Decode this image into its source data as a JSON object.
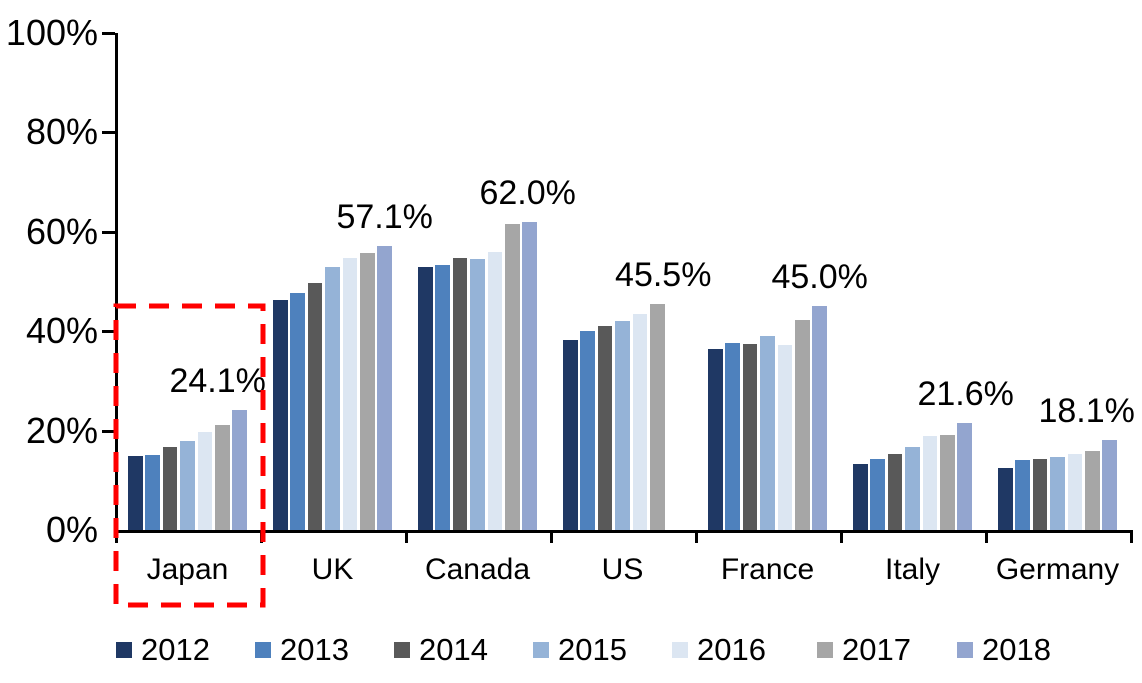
{
  "chart_data": {
    "type": "bar",
    "title": "",
    "xlabel": "",
    "ylabel": "",
    "categories": [
      "Japan",
      "UK",
      "Canada",
      "US",
      "France",
      "Italy",
      "Germany"
    ],
    "series": [
      {
        "name": "2012",
        "color": "#1F3864",
        "values": [
          14.9,
          46.2,
          52.9,
          38.2,
          36.4,
          13.2,
          12.5
        ]
      },
      {
        "name": "2013",
        "color": "#4E81BD",
        "values": [
          15.1,
          47.6,
          53.3,
          40.0,
          37.6,
          14.2,
          14.0
        ]
      },
      {
        "name": "2014",
        "color": "#595959",
        "values": [
          16.7,
          49.7,
          54.7,
          41.0,
          37.4,
          15.3,
          14.3
        ]
      },
      {
        "name": "2015",
        "color": "#95B3D7",
        "values": [
          18.0,
          52.9,
          54.5,
          42.0,
          39.1,
          16.8,
          14.7
        ]
      },
      {
        "name": "2016",
        "color": "#DCE6F2",
        "values": [
          19.8,
          54.7,
          56.0,
          43.5,
          37.2,
          18.9,
          15.3
        ]
      },
      {
        "name": "2017",
        "color": "#A6A6A6",
        "values": [
          21.1,
          55.7,
          61.5,
          45.5,
          42.2,
          19.1,
          15.9
        ]
      },
      {
        "name": "2018",
        "color": "#93A5CF",
        "values": [
          24.1,
          57.1,
          62.0,
          null,
          45.0,
          21.6,
          18.1
        ]
      }
    ],
    "annotations": [
      {
        "category": "Japan",
        "text": "24.1%"
      },
      {
        "category": "UK",
        "text": "57.1%"
      },
      {
        "category": "Canada",
        "text": "62.0%"
      },
      {
        "category": "US",
        "text": "45.5%"
      },
      {
        "category": "France",
        "text": "45.0%"
      },
      {
        "category": "Italy",
        "text": "21.6%"
      },
      {
        "category": "Germany",
        "text": "18.1%"
      }
    ],
    "y_ticks": [
      "0%",
      "20%",
      "40%",
      "60%",
      "80%",
      "100%"
    ],
    "ylim": [
      0,
      100
    ],
    "grid": false,
    "legend_position": "bottom",
    "highlight": {
      "shape": "dashed-box",
      "category": "Japan",
      "color": "#FF0000"
    }
  }
}
